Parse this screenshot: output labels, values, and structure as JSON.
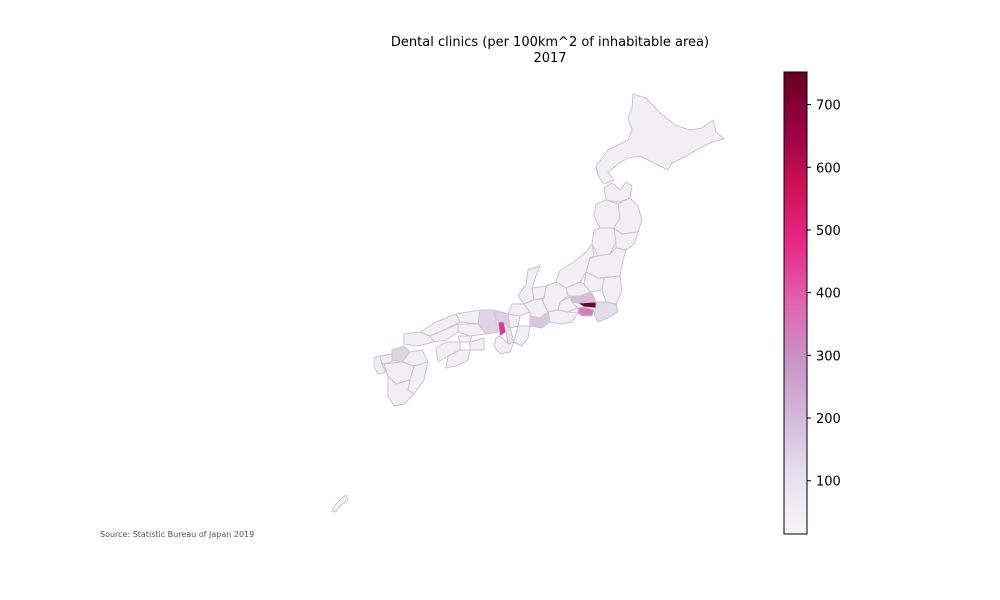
{
  "title_line1": "Dental clinics (per 100km^2 of inhabitable area)",
  "title_line2": "2017",
  "source": "Source: Statistic Bureau of Japan 2019",
  "colorbar": {
    "min": 15,
    "max": 752,
    "ticks": [
      100,
      200,
      300,
      400,
      500,
      600,
      700
    ],
    "colors": [
      "#f7f4f9",
      "#e7e1ef",
      "#d4b9da",
      "#c994c7",
      "#df65b0",
      "#e7298a",
      "#ce1256",
      "#980043",
      "#67001f"
    ]
  },
  "map_data": {
    "type": "choropleth",
    "region": "Japan prefectures",
    "values": {
      "Tokyo": 730,
      "Osaka": 460,
      "Kanagawa": 330,
      "Saitama": 190,
      "Aichi": 170,
      "Kyoto": 150,
      "Hyogo": 140,
      "Fukuoka": 140,
      "Chiba": 120,
      "Nara": 110
    },
    "default_value": 45
  }
}
